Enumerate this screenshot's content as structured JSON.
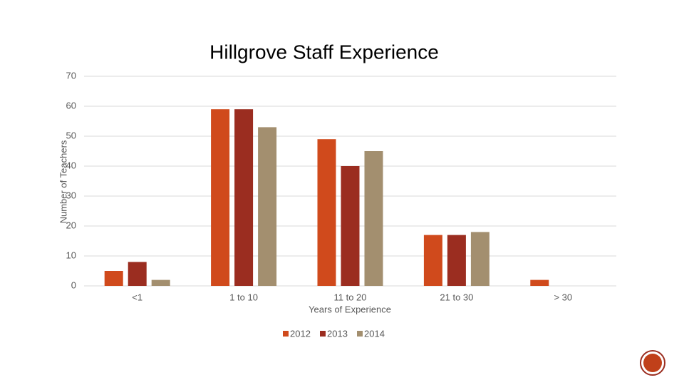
{
  "chart_data": {
    "type": "bar",
    "title": "Hillgrove Staff Experience",
    "x_label": "Years  of Experience",
    "y_label": "Number of Teachers",
    "categories": [
      "<1",
      "1 to 10",
      "11 to 20",
      "21 to 30",
      "> 30"
    ],
    "series": [
      {
        "name": "2012",
        "color": "#d04a1c",
        "values": [
          5,
          59,
          49,
          17,
          2
        ]
      },
      {
        "name": "2013",
        "color": "#9b2d20",
        "values": [
          8,
          59,
          40,
          17,
          0
        ]
      },
      {
        "name": "2014",
        "color": "#a38f6f",
        "values": [
          2,
          53,
          45,
          18,
          0
        ]
      }
    ],
    "ylim": [
      0,
      70
    ],
    "yticks": [
      0,
      10,
      20,
      30,
      40,
      50,
      60,
      70
    ],
    "grid": true,
    "legend": "bottom"
  }
}
